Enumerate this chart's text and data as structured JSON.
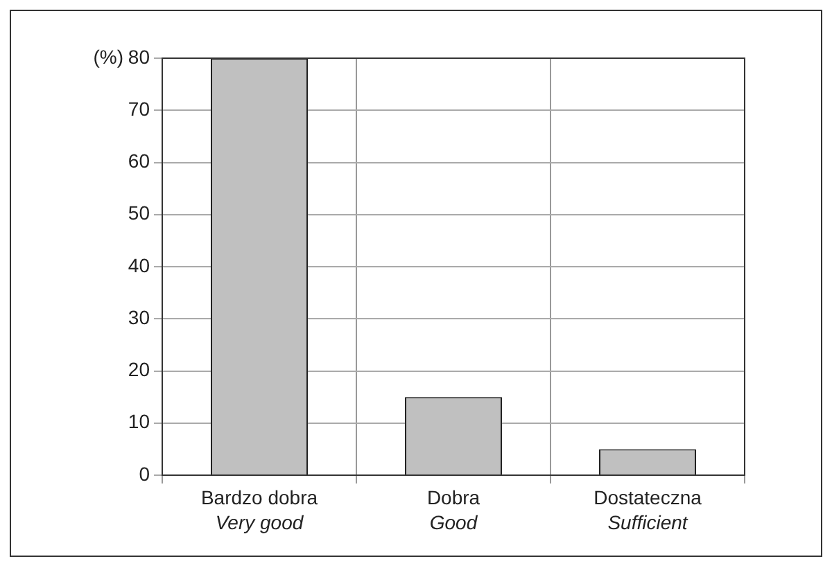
{
  "chart_data": {
    "type": "bar",
    "ylabel": "(%)",
    "categories": [
      "Bardzo dobra\nVery good",
      "Dobra\nGood",
      "Dostateczna\nSufficient"
    ],
    "values": [
      80,
      15,
      5
    ],
    "color": "#c0c0c0",
    "ylim": [
      0,
      80
    ],
    "yticks": [
      0,
      10,
      20,
      30,
      40,
      50,
      60,
      70,
      80
    ],
    "grid": true,
    "legend": false
  }
}
